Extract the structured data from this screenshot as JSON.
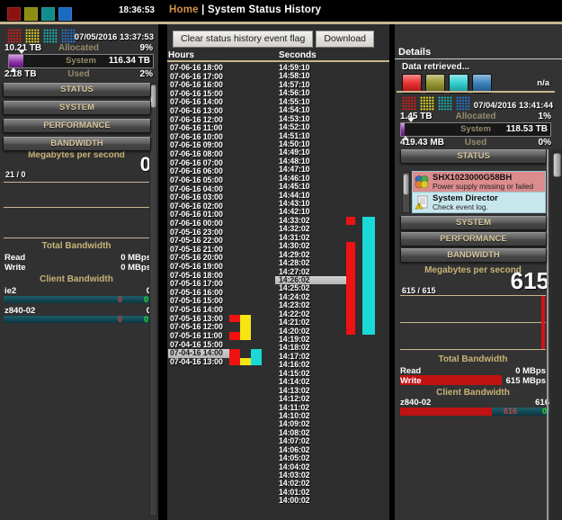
{
  "header": {
    "time": "18:36:53",
    "breadcrumb_home": "Home",
    "breadcrumb_sep": "|",
    "breadcrumb_title": "System Status History"
  },
  "toolbar": {
    "clear_button": "Clear status history event flag",
    "download_button": "Download"
  },
  "left_panel": {
    "timestamp": "07/05/2016 13:37:53",
    "allocated_size": "10.21 TB",
    "allocated_label": "Allocated",
    "allocated_pct": "9%",
    "system_label": "System",
    "system_capacity": "116.34 TB",
    "used_size": "2.18 TB",
    "used_label": "Used",
    "used_pct": "2%",
    "nav": [
      "STATUS",
      "SYSTEM",
      "PERFORMANCE",
      "BANDWIDTH"
    ],
    "mbps_label": "Megabytes per second",
    "mbps_value": "0",
    "mbps_sub": "21 / 0",
    "total_bandwidth_label": "Total Bandwidth",
    "read_label": "Read",
    "read_value": "0 MBps",
    "write_label": "Write",
    "write_value": "0 MBps",
    "client_bandwidth_label": "Client Bandwidth",
    "clients": [
      {
        "name": "ie2",
        "value": "0",
        "read": "0",
        "write": "0"
      },
      {
        "name": "z840-02",
        "value": "0",
        "read": "0",
        "write": "0"
      }
    ]
  },
  "columns": {
    "hours": {
      "header": "Hours",
      "selected": 33,
      "rows": [
        "07-06-16 18:00",
        "07-06-16 17:00",
        "07-06-16 16:00",
        "07-06-16 15:00",
        "07-06-16 14:00",
        "07-06-16 13:00",
        "07-06-16 12:00",
        "07-06-16 11:00",
        "07-06-16 10:00",
        "07-06-16 09:00",
        "07-06-16 08:00",
        "07-06-16 07:00",
        "07-06-16 06:00",
        "07-06-16 05:00",
        "07-06-16 04:00",
        "07-06-16 03:00",
        "07-06-16 02:00",
        "07-06-16 01:00",
        "07-06-16 00:00",
        "07-05-16 23:00",
        "07-05-16 22:00",
        "07-05-16 21:00",
        "07-05-16 20:00",
        "07-05-16 19:00",
        "07-05-16 18:00",
        "07-05-16 17:00",
        "07-05-16 16:00",
        "07-05-16 15:00",
        "07-05-16 14:00",
        "07-05-16 13:00",
        "07-05-16 12:00",
        "07-05-16 11:00",
        "07-04-16 15:00",
        "07-04-16 14:00",
        "07-04-16 13:00"
      ]
    },
    "seconds": {
      "header": "Seconds",
      "selected": 25,
      "rows": [
        "14:59:10",
        "14:58:10",
        "14:57:10",
        "14:56:10",
        "14:55:10",
        "14:54:10",
        "14:53:10",
        "14:52:10",
        "14:51:10",
        "14:50:10",
        "14:49:10",
        "14:48:10",
        "14:47:10",
        "14:46:10",
        "14:45:10",
        "14:44:10",
        "14:43:10",
        "14:42:10",
        "14:33:02",
        "14:32:02",
        "14:31:02",
        "14:30:02",
        "14:29:02",
        "14:28:02",
        "14:27:02",
        "14:26:02",
        "14:25:02",
        "14:24:02",
        "14:23:02",
        "14:22:02",
        "14:21:02",
        "14:20:02",
        "14:19:02",
        "14:18:02",
        "14:17:02",
        "14:16:02",
        "14:15:02",
        "14:14:02",
        "14:13:02",
        "14:12:02",
        "14:11:02",
        "14:10:02",
        "14:09:02",
        "14:08:02",
        "14:07:02",
        "14:06:02",
        "14:05:02",
        "14:04:02",
        "14:03:02",
        "14:02:02",
        "14:01:02",
        "14:00:02"
      ]
    }
  },
  "events": {
    "hours": [
      {
        "color": "red",
        "start": 29,
        "end": 29
      },
      {
        "color": "yellow",
        "start": 29,
        "end": 31
      },
      {
        "color": "red",
        "start": 31,
        "end": 31
      },
      {
        "color": "red",
        "start": 33,
        "end": 34
      },
      {
        "color": "yellow",
        "start": 34,
        "end": 34
      },
      {
        "color": "cyan",
        "start": 33,
        "end": 34
      }
    ],
    "seconds": [
      {
        "color": "red",
        "start": 18,
        "end": 18
      },
      {
        "color": "red",
        "start": 21,
        "end": 31
      },
      {
        "color": "cyan",
        "start": 18,
        "end": 31
      }
    ],
    "palette": {
      "red": "#ee1212",
      "yellow": "#f4e513",
      "cyan": "#19d9d9"
    }
  },
  "details_panel": {
    "title": "Details",
    "data_retrieved_label": "Data retrieved...",
    "na_value": "n/a",
    "timestamp": "07/04/2016 13:41:44",
    "allocated_size": "1.45 TB",
    "allocated_label": "Allocated",
    "allocated_pct": "1%",
    "system_label": "System",
    "system_capacity": "118.53 TB",
    "used_size": "419.43 MB",
    "used_label": "Used",
    "used_pct": "0%",
    "nav_top": "STATUS",
    "alerts": [
      {
        "title": "SHX1023000G58BH",
        "message": "Power supply missing or failed",
        "color": "#dc8c8c",
        "icon": "storage-device-icon"
      },
      {
        "title": "System Director",
        "message": "Check event log.",
        "color": "#c8e7ec",
        "icon": "document-warning-icon"
      }
    ],
    "nav": [
      "SYSTEM",
      "PERFORMANCE",
      "BANDWIDTH"
    ],
    "mbps_label": "Megabytes per second",
    "mbps_value": "615",
    "mbps_sub": "615 / 615",
    "total_bandwidth_label": "Total Bandwidth",
    "read_label": "Read",
    "read_value": "0 MBps",
    "write_label": "Write",
    "write_value": "615 MBps",
    "client_bandwidth_label": "Client Bandwidth",
    "clients": [
      {
        "name": "z840-02",
        "value": "616",
        "read": "616",
        "write": "0"
      }
    ]
  },
  "icons": {
    "topbar": [
      "dark-red-square-icon",
      "olive-square-icon",
      "teal-square-icon",
      "blue-square-icon"
    ],
    "left_grid": [
      "red-grid-icon",
      "yellow-grid-icon",
      "teal-grid-icon",
      "blue-grid-icon"
    ],
    "details_status": [
      "red-status-icon",
      "olive-status-icon",
      "cyan-status-icon",
      "blue-status-icon"
    ],
    "details_grid": [
      "red-grid-icon",
      "yellow-grid-icon",
      "teal-grid-icon",
      "blue-grid-icon"
    ]
  },
  "colors": {
    "accent_tan": "#c9b690",
    "label_gold": "#c7b377",
    "muted_label": "#948a6c",
    "selection": "#c6c6c6",
    "write_bar": "#c01212",
    "client_bar_teal": "#124c55",
    "purple_fill": "#8d35ab"
  }
}
